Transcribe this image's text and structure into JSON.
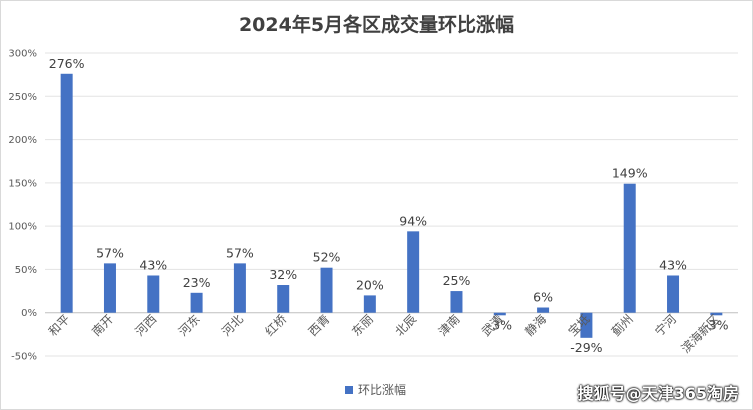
{
  "chart_data": {
    "type": "bar",
    "title": "2024年5月各区成交量环比涨幅",
    "categories": [
      "和平",
      "南开",
      "河西",
      "河东",
      "河北",
      "红桥",
      "西青",
      "东丽",
      "北辰",
      "津南",
      "武清",
      "静海",
      "宝坻",
      "蓟州",
      "宁河",
      "滨海新区"
    ],
    "series": [
      {
        "name": "环比涨幅",
        "values": [
          276,
          57,
          43,
          23,
          57,
          32,
          52,
          20,
          94,
          25,
          -3,
          6,
          -29,
          149,
          43,
          -3
        ],
        "labels": [
          "276%",
          "57%",
          "43%",
          "23%",
          "57%",
          "32%",
          "52%",
          "20%",
          "94%",
          "25%",
          "-3%",
          "6%",
          "-29%",
          "149%",
          "43%",
          "-3%"
        ]
      }
    ],
    "yticks": [
      "300%",
      "250%",
      "200%",
      "150%",
      "100%",
      "50%",
      "0%",
      "-50%"
    ],
    "ylim": [
      -50,
      300
    ],
    "grid": true,
    "legend_position": "bottom",
    "bar_color": "#4472c4"
  },
  "watermark": "搜狐号@天津365淘房"
}
